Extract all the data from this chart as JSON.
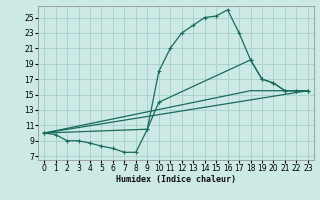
{
  "xlabel": "Humidex (Indice chaleur)",
  "background_color": "#cce9e5",
  "grid_color": "#aad4cf",
  "line_color": "#1a6b5a",
  "xlim": [
    -0.5,
    23.5
  ],
  "ylim": [
    6.5,
    26.5
  ],
  "xticks": [
    0,
    1,
    2,
    3,
    4,
    5,
    6,
    7,
    8,
    9,
    10,
    11,
    12,
    13,
    14,
    15,
    16,
    17,
    18,
    19,
    20,
    21,
    22,
    23
  ],
  "yticks": [
    7,
    9,
    11,
    13,
    15,
    17,
    19,
    21,
    23,
    25
  ],
  "line1_x": [
    0,
    1,
    2,
    3,
    4,
    5,
    6,
    7,
    8,
    9,
    10,
    11,
    12,
    13,
    14,
    15,
    16,
    17,
    18,
    19,
    20,
    21,
    22,
    23
  ],
  "line1_y": [
    10.0,
    9.8,
    9.0,
    9.0,
    8.7,
    8.3,
    8.0,
    7.5,
    7.5,
    10.5,
    18.0,
    21.0,
    23.0,
    24.0,
    25.0,
    25.2,
    26.0,
    23.0,
    19.5,
    17.0,
    16.5,
    15.5,
    15.5,
    15.5
  ],
  "line2_x": [
    0,
    9,
    10,
    18,
    19,
    20,
    21,
    22,
    23
  ],
  "line2_y": [
    10.0,
    10.5,
    14.0,
    19.5,
    17.0,
    16.5,
    15.5,
    15.5,
    15.5
  ],
  "line3_x": [
    0,
    23
  ],
  "line3_y": [
    10.0,
    15.5
  ],
  "line4_x": [
    0,
    18,
    23
  ],
  "line4_y": [
    10.0,
    15.5,
    15.5
  ]
}
